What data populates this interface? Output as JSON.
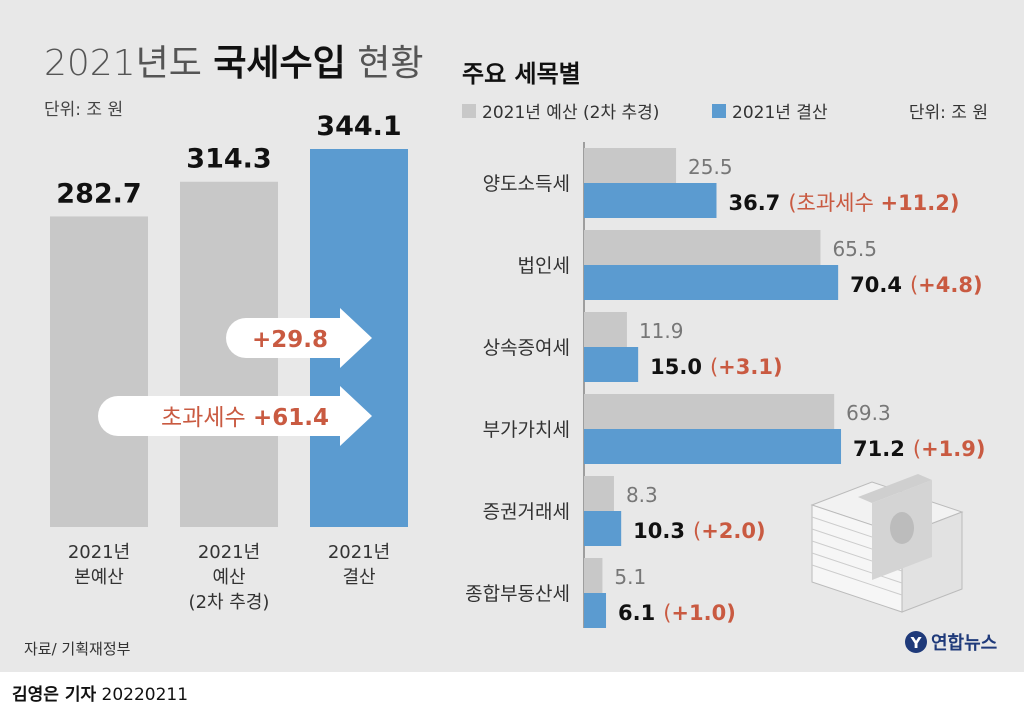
{
  "header": {
    "title_light_1": "2021년도 ",
    "title_bold": "국세수입",
    "title_light_2": " 현황"
  },
  "left_unit": "단위: 조 원",
  "arrows": [
    {
      "prefix": "",
      "value": "+29.8"
    },
    {
      "prefix": "초과세수 ",
      "value": "+61.4"
    }
  ],
  "right": {
    "subtitle": "주요 세목별",
    "unit": "단위: 조 원"
  },
  "source": "자료/ 기획재정부",
  "logo": {
    "mark": "Y",
    "text": "연합뉴스"
  },
  "credit": {
    "name": "김영은 기자",
    "date": "20220211"
  },
  "colors": {
    "gray": "#c8c8c8",
    "blue": "#5b9bd0",
    "red": "#c95a41",
    "panel": "#e8e8e8"
  },
  "chart_data": [
    {
      "type": "bar",
      "title": "2021년도 국세수입 현황",
      "ylabel": "단위: 조 원",
      "ylim": [
        0,
        344.1
      ],
      "categories": [
        [
          "2021년",
          "본예산"
        ],
        [
          "2021년",
          "예산",
          "(2차 추경)"
        ],
        [
          "2021년",
          "결산"
        ]
      ],
      "values": [
        282.7,
        314.3,
        344.1
      ],
      "labels": [
        "282.7",
        "314.3",
        "344.1"
      ],
      "highlight_index": 2,
      "annotations": [
        "+29.8",
        "초과세수 +61.4"
      ]
    },
    {
      "type": "bar",
      "orientation": "horizontal",
      "title": "주요 세목별",
      "unit": "단위: 조 원",
      "categories": [
        "양도소득세",
        "법인세",
        "상속증여세",
        "부가가치세",
        "증권거래세",
        "종합부동산세"
      ],
      "series": [
        {
          "name": "2021년 예산 (2차 추경)",
          "values": [
            25.5,
            65.5,
            11.9,
            69.3,
            8.3,
            5.1
          ],
          "labels": [
            "25.5",
            "65.5",
            "11.9",
            "69.3",
            "8.3",
            "5.1"
          ]
        },
        {
          "name": "2021년 결산",
          "values": [
            36.7,
            70.4,
            15.0,
            71.2,
            10.3,
            6.1
          ],
          "labels": [
            "36.7",
            "70.4",
            "15.0",
            "71.2",
            "10.3",
            "6.1"
          ]
        }
      ],
      "differences": [
        {
          "prefix": "(초과세수 ",
          "value": "+11.2)"
        },
        {
          "prefix": "(",
          "value": "+4.8)"
        },
        {
          "prefix": "(",
          "value": "+3.1)"
        },
        {
          "prefix": "(",
          "value": "+1.9)"
        },
        {
          "prefix": "(",
          "value": "+2.0)"
        },
        {
          "prefix": "(",
          "value": "+1.0)"
        }
      ]
    }
  ]
}
